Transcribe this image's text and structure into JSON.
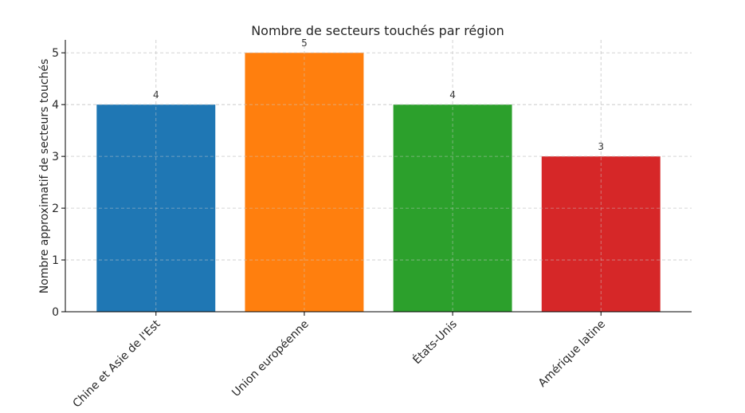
{
  "chart_data": {
    "type": "bar",
    "title": "Nombre de secteurs touchés par région",
    "xlabel": "",
    "ylabel": "Nombre approximatif de secteurs touchés",
    "categories": [
      "Chine et Asie de l'Est",
      "Union européenne",
      "États-Unis",
      "Amérique latine"
    ],
    "values": [
      4,
      5,
      4,
      3
    ],
    "colors": [
      "#1f77b4",
      "#ff7f0e",
      "#2ca02c",
      "#d62728"
    ],
    "ylim": [
      0,
      5.25
    ],
    "yticks": [
      0,
      1,
      2,
      3,
      4,
      5
    ],
    "grid": true,
    "legend": "none"
  }
}
